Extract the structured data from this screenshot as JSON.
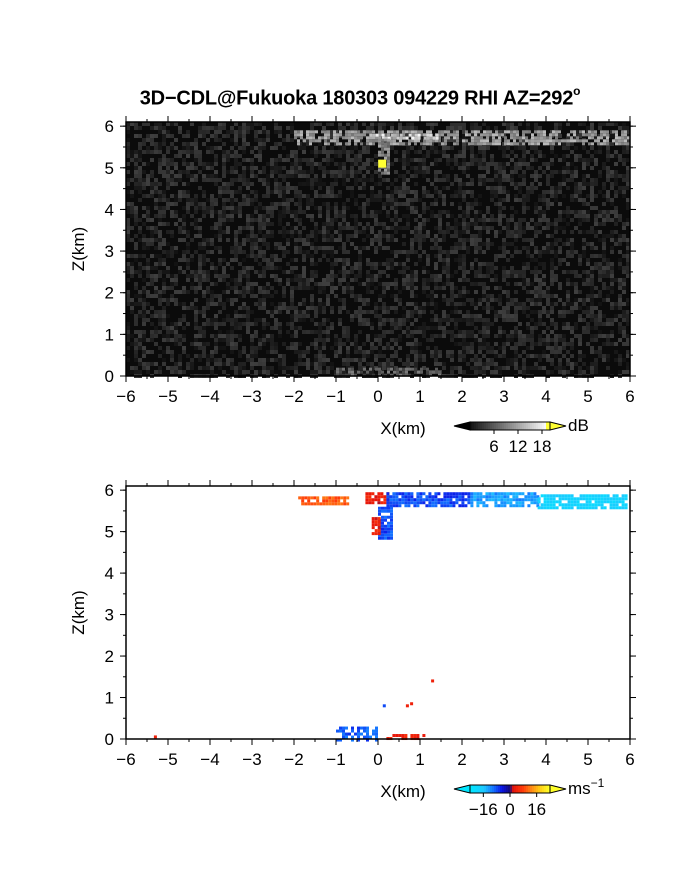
{
  "title": {
    "main": "3D−CDL@Fukuoka 180303 094229 RHI AZ=292",
    "degree": "o"
  },
  "colors": {
    "frame": "#000000",
    "background_top": "#0b0b0b",
    "background_bottom": "#ffffff",
    "highlight_yellow": "#ffff33"
  },
  "chart_data": [
    {
      "type": "heatmap",
      "name": "power",
      "xlabel": "X(km)",
      "ylabel": "Z(km)",
      "xlim": [
        -6,
        6
      ],
      "ylim": [
        0,
        6.1
      ],
      "xticks": [
        "−6",
        "−5",
        "−4",
        "−3",
        "−2",
        "−1",
        "0",
        "1",
        "2",
        "3",
        "4",
        "5",
        "6"
      ],
      "yticks": [
        "0",
        "1",
        "2",
        "3",
        "4",
        "5",
        "6"
      ],
      "colorbar": {
        "unit": "dB",
        "ticks": [
          "6",
          "12",
          "18"
        ],
        "range": [
          0,
          20
        ],
        "tick_values": [
          6,
          12,
          18
        ]
      },
      "features": [
        {
          "kind": "layer",
          "x": [
            -2.0,
            6.0
          ],
          "z": [
            5.6,
            5.9
          ],
          "level": 14
        },
        {
          "kind": "bright_band",
          "x": [
            -0.2,
            1.4
          ],
          "z": [
            5.68,
            5.82
          ],
          "level": 19
        },
        {
          "kind": "column",
          "x": [
            0.0,
            0.25
          ],
          "z": [
            4.9,
            5.7
          ],
          "level": 12
        },
        {
          "kind": "spot",
          "x": 0.1,
          "z": 5.1,
          "level": 20
        },
        {
          "kind": "ground",
          "x": [
            -1.0,
            1.5
          ],
          "z": [
            0.0,
            0.2
          ],
          "level": 9
        }
      ]
    },
    {
      "type": "scatter",
      "name": "doppler_velocity",
      "xlabel": "X(km)",
      "ylabel": "Z(km)",
      "xlim": [
        -6,
        6
      ],
      "ylim": [
        0,
        6.1
      ],
      "xticks": [
        "−6",
        "−5",
        "−4",
        "−3",
        "−2",
        "−1",
        "0",
        "1",
        "2",
        "3",
        "4",
        "5",
        "6"
      ],
      "yticks": [
        "0",
        "1",
        "2",
        "3",
        "4",
        "5",
        "6"
      ],
      "colorbar": {
        "unit": "ms",
        "unit_exp": "−1",
        "ticks": [
          "−16",
          "0",
          "16"
        ],
        "range": [
          -24,
          24
        ],
        "tick_values": [
          -16,
          0,
          16
        ]
      },
      "features": [
        {
          "kind": "layer",
          "x": [
            -1.9,
            -0.7
          ],
          "z": [
            5.7,
            5.85
          ],
          "v": 10
        },
        {
          "kind": "layer",
          "x": [
            -0.3,
            0.2
          ],
          "z": [
            5.7,
            5.95
          ],
          "v": 4
        },
        {
          "kind": "layer",
          "x": [
            0.2,
            2.2
          ],
          "z": [
            5.65,
            5.95
          ],
          "v": -8
        },
        {
          "kind": "layer",
          "x": [
            2.2,
            3.8
          ],
          "z": [
            5.6,
            5.95
          ],
          "v": -13
        },
        {
          "kind": "layer",
          "x": [
            3.8,
            5.9
          ],
          "z": [
            5.6,
            5.9
          ],
          "v": -19
        },
        {
          "kind": "column",
          "x": [
            0.0,
            0.3
          ],
          "z": [
            4.85,
            5.6
          ],
          "v": -8
        },
        {
          "kind": "column",
          "x": [
            -0.15,
            0.05
          ],
          "z": [
            4.95,
            5.35
          ],
          "v": 4
        },
        {
          "kind": "ground",
          "x": [
            -1.0,
            0.0
          ],
          "z": [
            0.0,
            0.3
          ],
          "v": -9
        },
        {
          "kind": "ground",
          "x": [
            0.2,
            1.1
          ],
          "z": [
            0.0,
            0.12
          ],
          "v": 4
        },
        {
          "kind": "point",
          "x": 0.15,
          "z": 0.8,
          "v": -8
        },
        {
          "kind": "point",
          "x": 0.8,
          "z": 0.85,
          "v": 4
        },
        {
          "kind": "point",
          "x": 0.7,
          "z": 0.8,
          "v": 4
        },
        {
          "kind": "point",
          "x": 1.3,
          "z": 1.4,
          "v": 4
        },
        {
          "kind": "point",
          "x": -5.3,
          "z": 0.05,
          "v": 4
        }
      ]
    }
  ]
}
